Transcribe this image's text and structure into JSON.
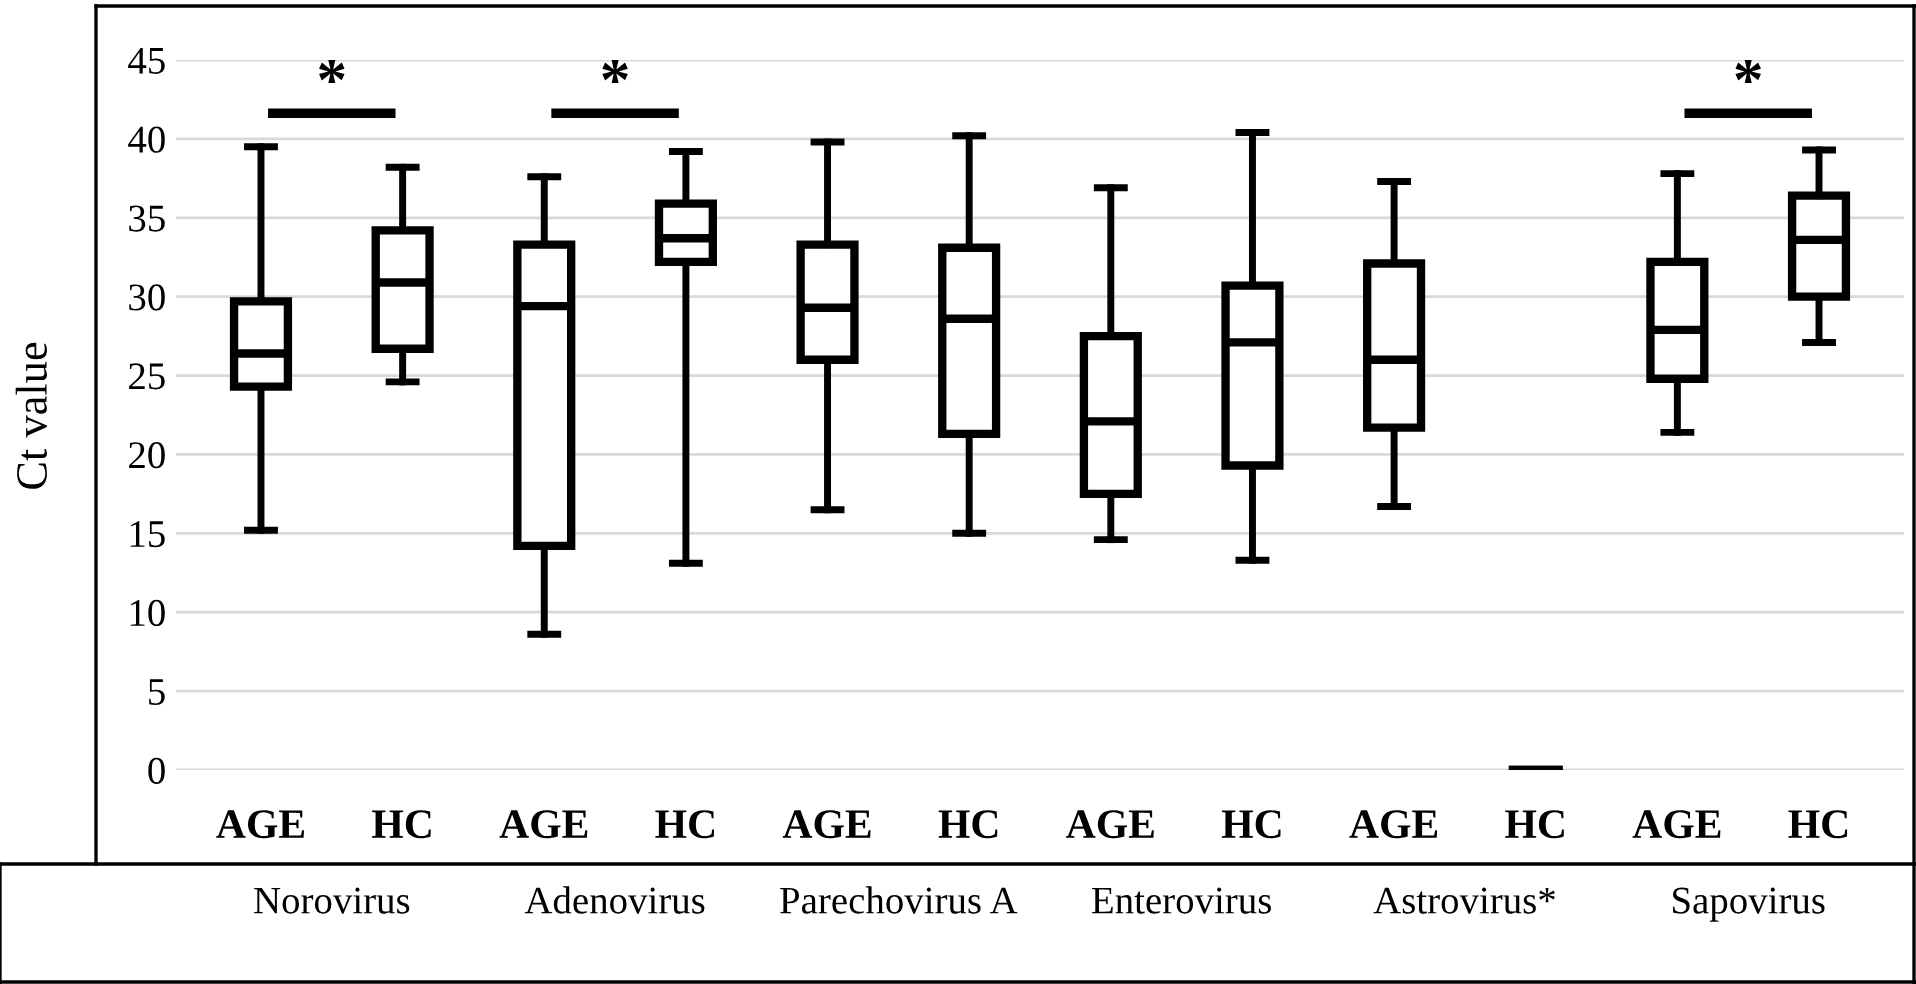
{
  "chart_data": {
    "type": "box",
    "ylabel": "Ct value",
    "categories": [
      "AGE",
      "HC",
      "AGE",
      "HC",
      "AGE",
      "HC",
      "AGE",
      "HC",
      "AGE",
      "HC",
      "AGE",
      "HC"
    ],
    "boxes": [
      {
        "low": 15.2,
        "q1": 24.3,
        "median": 26.4,
        "q3": 29.7,
        "high": 39.5
      },
      {
        "low": 24.6,
        "q1": 26.7,
        "median": 30.9,
        "q3": 34.2,
        "high": 38.2
      },
      {
        "low": 8.6,
        "q1": 14.2,
        "median": 29.4,
        "q3": 33.3,
        "high": 37.6
      },
      {
        "low": 13.1,
        "q1": 32.2,
        "median": 33.7,
        "q3": 35.9,
        "high": 39.2
      },
      {
        "low": 16.5,
        "q1": 26.0,
        "median": 29.3,
        "q3": 33.3,
        "high": 39.8
      },
      {
        "low": 15.0,
        "q1": 21.3,
        "median": 28.6,
        "q3": 33.1,
        "high": 40.2
      },
      {
        "low": 14.6,
        "q1": 17.5,
        "median": 22.1,
        "q3": 27.5,
        "high": 36.9
      },
      {
        "low": 13.3,
        "q1": 19.3,
        "median": 27.1,
        "q3": 30.7,
        "high": 40.4
      },
      {
        "low": 16.7,
        "q1": 21.7,
        "median": 26.0,
        "q3": 32.1,
        "high": 37.3
      },
      {
        "low": 0,
        "q1": 0,
        "median": 0,
        "q3": 0,
        "high": 0
      },
      {
        "low": 21.4,
        "q1": 24.8,
        "median": 27.9,
        "q3": 32.2,
        "high": 37.8
      },
      {
        "low": 27.1,
        "q1": 30.0,
        "median": 33.6,
        "q3": 36.4,
        "high": 39.3
      }
    ],
    "color": "#000000",
    "ylim": [
      0,
      45
    ],
    "yticks": [
      0,
      5,
      10,
      15,
      20,
      25,
      30,
      35,
      40,
      45
    ],
    "grid": "y",
    "annotations": [
      "Norovirus",
      "*",
      "Adenovirus",
      "*",
      "Parechovirus A",
      "Enterovirus",
      "Astrovirus*",
      "Sapovirus",
      "*"
    ]
  }
}
